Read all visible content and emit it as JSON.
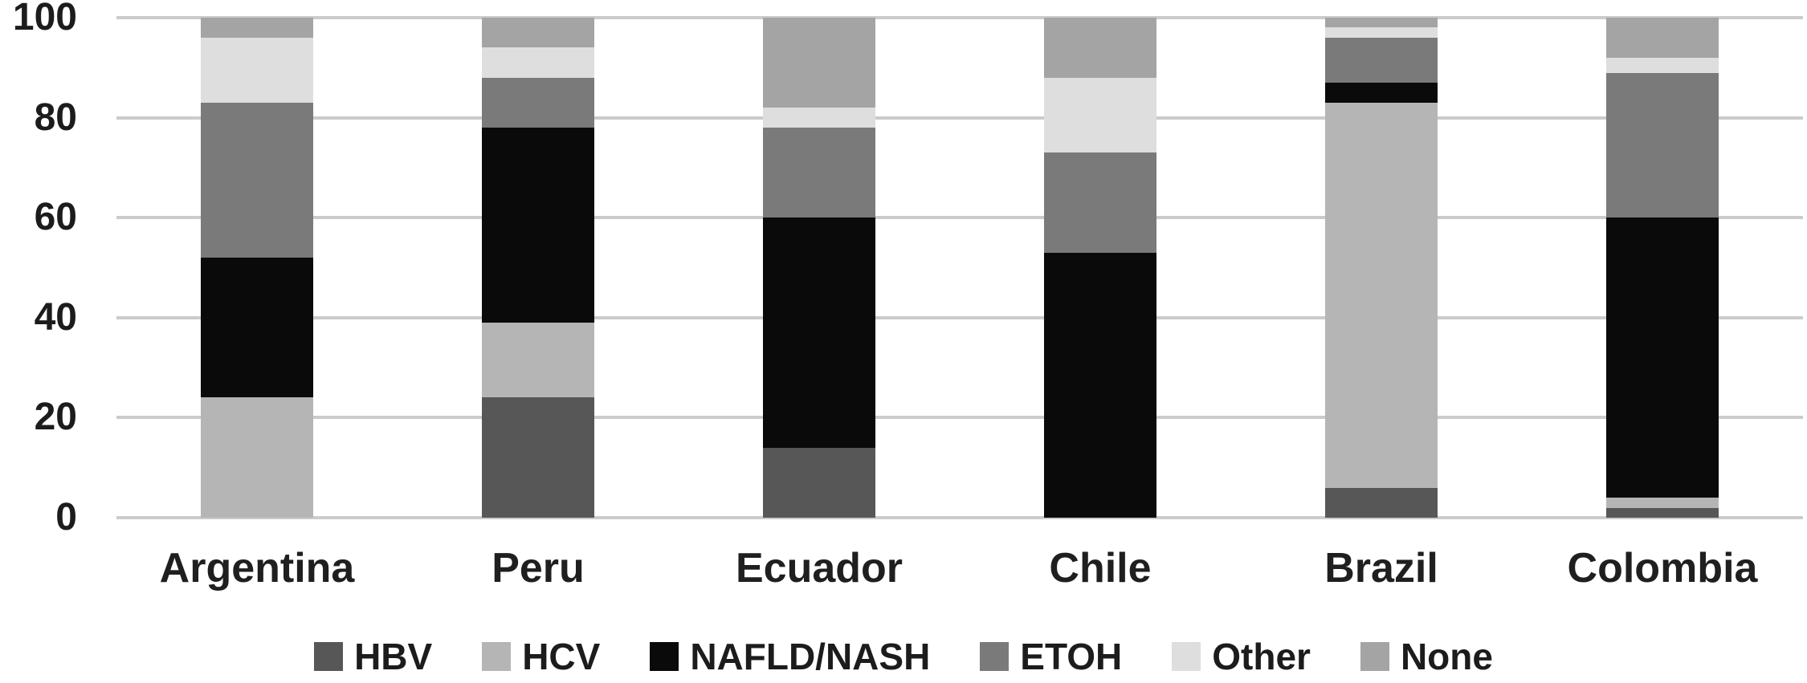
{
  "chart_data": {
    "type": "bar",
    "variant": "stacked-100",
    "orientation": "vertical",
    "title": "",
    "xlabel": "",
    "ylabel": "",
    "ylim": [
      0,
      100
    ],
    "yticks": [
      0,
      20,
      40,
      60,
      80,
      100
    ],
    "grid": "horizontal",
    "grid_color": "#cbcbcb",
    "background_color": "#ffffff",
    "legend_position": "bottom",
    "categories": [
      "Argentina",
      "Peru",
      "Ecuador",
      "Chile",
      "Brazil",
      "Colombia"
    ],
    "series": [
      {
        "name": "HBV",
        "color": "#575757",
        "values": [
          0,
          24,
          14,
          0,
          6,
          2
        ]
      },
      {
        "name": "HCV",
        "color": "#b5b5b5",
        "values": [
          24,
          15,
          0,
          0,
          77,
          2
        ]
      },
      {
        "name": "NAFLD/NASH",
        "color": "#0a0a0a",
        "values": [
          28,
          39,
          46,
          53,
          4,
          56
        ]
      },
      {
        "name": "ETOH",
        "color": "#7a7a7a",
        "values": [
          31,
          10,
          18,
          20,
          9,
          29
        ]
      },
      {
        "name": "Other",
        "color": "#dedede",
        "values": [
          13,
          6,
          4,
          15,
          2,
          3
        ]
      },
      {
        "name": "None",
        "color": "#a4a4a4",
        "values": [
          4,
          6,
          18,
          12,
          2,
          8
        ]
      }
    ]
  }
}
